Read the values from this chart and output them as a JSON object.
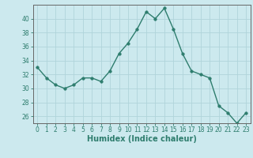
{
  "x": [
    0,
    1,
    2,
    3,
    4,
    5,
    6,
    7,
    8,
    9,
    10,
    11,
    12,
    13,
    14,
    15,
    16,
    17,
    18,
    19,
    20,
    21,
    22,
    23
  ],
  "y": [
    33,
    31.5,
    30.5,
    30,
    30.5,
    31.5,
    31.5,
    31,
    32.5,
    35,
    36.5,
    38.5,
    41,
    40,
    41.5,
    38.5,
    35,
    32.5,
    32,
    31.5,
    27.5,
    26.5,
    25,
    26.5
  ],
  "line_color": "#2e7d6e",
  "marker": "o",
  "marker_size": 2.5,
  "line_width": 1.0,
  "bg_color": "#cce9ee",
  "grid_color": "#b0d4da",
  "xlabel": "Humidex (Indice chaleur)",
  "xlabel_fontsize": 7,
  "ylabel_ticks": [
    26,
    28,
    30,
    32,
    34,
    36,
    38,
    40
  ],
  "ylim": [
    25,
    42
  ],
  "xlim": [
    -0.5,
    23.5
  ],
  "xtick_fontsize": 5.5,
  "ytick_fontsize": 5.5,
  "tick_color": "#2e7d6e",
  "spine_color": "#666666",
  "xlabel_color": "#2e7d6e"
}
